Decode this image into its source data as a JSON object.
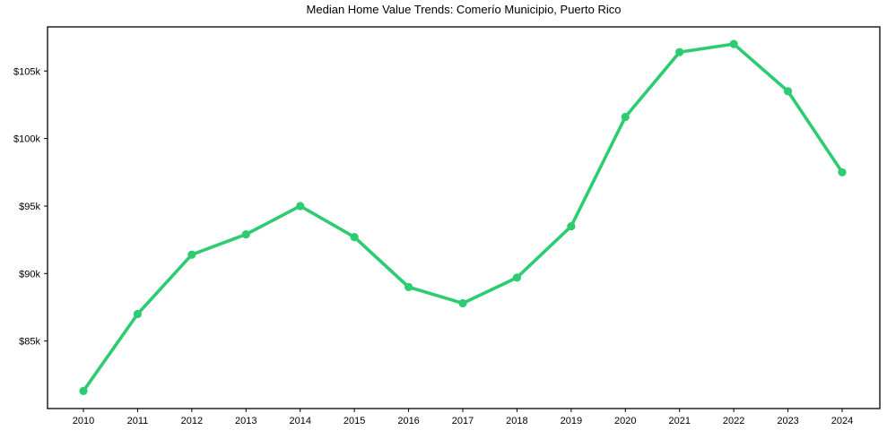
{
  "chart_data": {
    "type": "line",
    "title": "Median Home Value Trends: Comerío Municipio, Puerto Rico",
    "xlabel": "",
    "ylabel": "",
    "categories": [
      "2010",
      "2011",
      "2012",
      "2013",
      "2014",
      "2015",
      "2016",
      "2017",
      "2018",
      "2019",
      "2020",
      "2021",
      "2022",
      "2023",
      "2024"
    ],
    "series": [
      {
        "name": "Median Home Value",
        "values": [
          81300,
          87000,
          91400,
          92900,
          95000,
          92700,
          89000,
          87800,
          89700,
          93500,
          101600,
          106400,
          107000,
          103500,
          97500
        ]
      }
    ],
    "ylim": [
      80000,
      108270
    ],
    "ytick_values": [
      85000,
      90000,
      95000,
      100000,
      105000
    ],
    "ytick_labels": [
      "$85k",
      "$90k",
      "$95k",
      "$100k",
      "$105k"
    ],
    "grid": false,
    "legend": "none",
    "line_color": "#2ecc71",
    "marker_color": "#2ecc71",
    "axis_color": "#000000",
    "background_color": "#ffffff"
  }
}
